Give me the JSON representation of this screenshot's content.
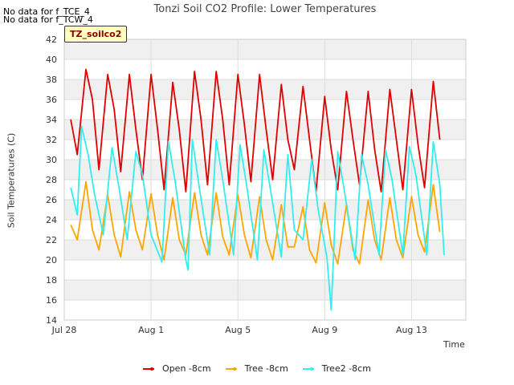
{
  "header": {
    "nodata_1": "No data for f_TCE_4",
    "nodata_2": "No data for f_TCW_4",
    "tag": "TZ_soilco2"
  },
  "chart_data": {
    "type": "line",
    "title": "Tonzi Soil CO2 Profile: Lower Temperatures",
    "xlabel": "Time",
    "ylabel": "Soil Temperatures (C)",
    "ylim": [
      14,
      42
    ],
    "xlim_days": [
      0,
      18.5
    ],
    "x_ticks": [
      {
        "day": 0,
        "label": "Jul 28"
      },
      {
        "day": 4,
        "label": "Aug 1"
      },
      {
        "day": 8,
        "label": "Aug 5"
      },
      {
        "day": 12,
        "label": "Aug 9"
      },
      {
        "day": 16,
        "label": "Aug 13"
      }
    ],
    "y_ticks": [
      14,
      16,
      18,
      20,
      22,
      24,
      26,
      28,
      30,
      32,
      34,
      36,
      38,
      40,
      42
    ],
    "grid": true,
    "legend_position": "bottom",
    "series": [
      {
        "name": "Open -8cm",
        "color": "#e00000",
        "points": [
          [
            0.3,
            34.0
          ],
          [
            0.6,
            30.5
          ],
          [
            1.0,
            39.0
          ],
          [
            1.3,
            36.0
          ],
          [
            1.6,
            29.0
          ],
          [
            2.0,
            38.5
          ],
          [
            2.3,
            35.0
          ],
          [
            2.6,
            28.8
          ],
          [
            3.0,
            38.5
          ],
          [
            3.3,
            33.0
          ],
          [
            3.6,
            28.0
          ],
          [
            4.0,
            38.5
          ],
          [
            4.3,
            33.0
          ],
          [
            4.6,
            27.0
          ],
          [
            5.0,
            37.7
          ],
          [
            5.3,
            33.0
          ],
          [
            5.6,
            26.8
          ],
          [
            6.0,
            38.8
          ],
          [
            6.3,
            34.0
          ],
          [
            6.6,
            27.5
          ],
          [
            7.0,
            38.8
          ],
          [
            7.3,
            34.0
          ],
          [
            7.6,
            27.5
          ],
          [
            8.0,
            38.5
          ],
          [
            8.3,
            33.5
          ],
          [
            8.6,
            27.8
          ],
          [
            9.0,
            38.5
          ],
          [
            9.3,
            33.0
          ],
          [
            9.6,
            28.0
          ],
          [
            10.0,
            37.5
          ],
          [
            10.3,
            32.0
          ],
          [
            10.6,
            29.0
          ],
          [
            11.0,
            37.3
          ],
          [
            11.3,
            32.0
          ],
          [
            11.6,
            26.8
          ],
          [
            12.0,
            36.3
          ],
          [
            12.3,
            31.0
          ],
          [
            12.6,
            27.0
          ],
          [
            13.0,
            36.8
          ],
          [
            13.3,
            32.0
          ],
          [
            13.6,
            27.5
          ],
          [
            14.0,
            36.8
          ],
          [
            14.3,
            31.0
          ],
          [
            14.6,
            26.8
          ],
          [
            15.0,
            37.0
          ],
          [
            15.3,
            32.0
          ],
          [
            15.6,
            27.0
          ],
          [
            16.0,
            37.0
          ],
          [
            16.3,
            31.5
          ],
          [
            16.6,
            27.2
          ],
          [
            17.0,
            37.8
          ],
          [
            17.3,
            32.0
          ]
        ]
      },
      {
        "name": "Tree -8cm",
        "color": "#ffa500",
        "points": [
          [
            0.3,
            23.5
          ],
          [
            0.6,
            22.0
          ],
          [
            1.0,
            27.8
          ],
          [
            1.3,
            23.0
          ],
          [
            1.6,
            21.0
          ],
          [
            2.0,
            26.5
          ],
          [
            2.3,
            22.5
          ],
          [
            2.6,
            20.3
          ],
          [
            3.0,
            26.8
          ],
          [
            3.3,
            23.0
          ],
          [
            3.6,
            21.0
          ],
          [
            4.0,
            26.6
          ],
          [
            4.3,
            22.5
          ],
          [
            4.6,
            20.0
          ],
          [
            5.0,
            26.2
          ],
          [
            5.3,
            22.0
          ],
          [
            5.6,
            20.5
          ],
          [
            6.0,
            26.7
          ],
          [
            6.3,
            22.5
          ],
          [
            6.6,
            20.5
          ],
          [
            7.0,
            26.7
          ],
          [
            7.3,
            22.3
          ],
          [
            7.6,
            20.5
          ],
          [
            8.0,
            26.5
          ],
          [
            8.3,
            22.5
          ],
          [
            8.6,
            20.2
          ],
          [
            9.0,
            26.3
          ],
          [
            9.3,
            22.0
          ],
          [
            9.6,
            20.0
          ],
          [
            10.0,
            25.5
          ],
          [
            10.3,
            21.3
          ],
          [
            10.6,
            21.3
          ],
          [
            11.0,
            25.3
          ],
          [
            11.3,
            21.0
          ],
          [
            11.6,
            19.7
          ],
          [
            12.0,
            25.7
          ],
          [
            12.3,
            21.5
          ],
          [
            12.6,
            19.6
          ],
          [
            13.0,
            25.5
          ],
          [
            13.3,
            21.0
          ],
          [
            13.6,
            19.6
          ],
          [
            14.0,
            26.0
          ],
          [
            14.3,
            22.0
          ],
          [
            14.6,
            20.0
          ],
          [
            15.0,
            26.2
          ],
          [
            15.3,
            22.0
          ],
          [
            15.6,
            20.2
          ],
          [
            16.0,
            26.3
          ],
          [
            16.3,
            22.5
          ],
          [
            16.6,
            20.8
          ],
          [
            17.0,
            27.5
          ],
          [
            17.3,
            22.8
          ]
        ]
      },
      {
        "name": "Tree2 -8cm",
        "color": "#33eeee",
        "points": [
          [
            0.3,
            27.2
          ],
          [
            0.6,
            24.5
          ],
          [
            0.8,
            33.3
          ],
          [
            1.1,
            30.5
          ],
          [
            1.4,
            26.5
          ],
          [
            1.8,
            22.5
          ],
          [
            2.2,
            31.2
          ],
          [
            2.5,
            27.5
          ],
          [
            2.9,
            22.0
          ],
          [
            3.3,
            30.8
          ],
          [
            3.6,
            28.5
          ],
          [
            4.0,
            22.5
          ],
          [
            4.5,
            19.8
          ],
          [
            4.8,
            31.8
          ],
          [
            5.1,
            28.0
          ],
          [
            5.6,
            20.0
          ],
          [
            5.7,
            19.0
          ],
          [
            5.9,
            32.0
          ],
          [
            6.2,
            27.5
          ],
          [
            6.7,
            20.5
          ],
          [
            7.0,
            32.0
          ],
          [
            7.3,
            28.0
          ],
          [
            7.8,
            20.5
          ],
          [
            8.1,
            31.5
          ],
          [
            8.4,
            27.5
          ],
          [
            8.9,
            20.0
          ],
          [
            9.2,
            31.0
          ],
          [
            9.5,
            27.0
          ],
          [
            10.0,
            20.3
          ],
          [
            10.3,
            30.5
          ],
          [
            10.6,
            23.0
          ],
          [
            11.0,
            22.0
          ],
          [
            11.4,
            30.0
          ],
          [
            11.7,
            25.0
          ],
          [
            12.1,
            20.3
          ],
          [
            12.3,
            15.0
          ],
          [
            12.4,
            20.0
          ],
          [
            12.6,
            30.8
          ],
          [
            12.9,
            27.0
          ],
          [
            13.4,
            20.0
          ],
          [
            13.7,
            30.5
          ],
          [
            14.0,
            27.5
          ],
          [
            14.5,
            20.5
          ],
          [
            14.8,
            31.0
          ],
          [
            15.1,
            28.0
          ],
          [
            15.6,
            20.5
          ],
          [
            15.9,
            31.3
          ],
          [
            16.2,
            28.5
          ],
          [
            16.7,
            20.5
          ],
          [
            17.0,
            31.8
          ],
          [
            17.3,
            27.5
          ],
          [
            17.5,
            20.5
          ]
        ]
      }
    ]
  }
}
